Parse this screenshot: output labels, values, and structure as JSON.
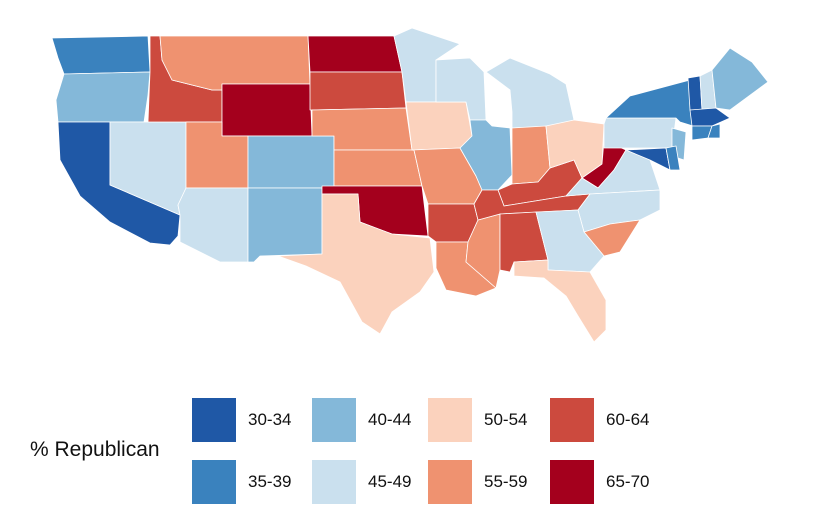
{
  "legend": {
    "title": "% Republican",
    "bins": [
      {
        "label": "30-34",
        "color": "#1f58a6"
      },
      {
        "label": "35-39",
        "color": "#3a82be"
      },
      {
        "label": "40-44",
        "color": "#84b8d9"
      },
      {
        "label": "45-49",
        "color": "#cae0ee"
      },
      {
        "label": "50-54",
        "color": "#fbd2bd"
      },
      {
        "label": "55-59",
        "color": "#ef9270"
      },
      {
        "label": "60-64",
        "color": "#cc4a3e"
      },
      {
        "label": "65-70",
        "color": "#a4001d"
      }
    ]
  },
  "states": [
    {
      "id": "WA",
      "bin": "35-39"
    },
    {
      "id": "OR",
      "bin": "40-44"
    },
    {
      "id": "CA",
      "bin": "30-34"
    },
    {
      "id": "NV",
      "bin": "45-49"
    },
    {
      "id": "ID",
      "bin": "60-64"
    },
    {
      "id": "MT",
      "bin": "55-59"
    },
    {
      "id": "WY",
      "bin": "65-70"
    },
    {
      "id": "UT",
      "bin": "55-59"
    },
    {
      "id": "AZ",
      "bin": "45-49"
    },
    {
      "id": "CO",
      "bin": "40-44"
    },
    {
      "id": "NM",
      "bin": "40-44"
    },
    {
      "id": "ND",
      "bin": "65-70"
    },
    {
      "id": "SD",
      "bin": "60-64"
    },
    {
      "id": "NE",
      "bin": "55-59"
    },
    {
      "id": "KS",
      "bin": "55-59"
    },
    {
      "id": "OK",
      "bin": "65-70"
    },
    {
      "id": "TX",
      "bin": "50-54"
    },
    {
      "id": "MN",
      "bin": "45-49"
    },
    {
      "id": "IA",
      "bin": "50-54"
    },
    {
      "id": "MO",
      "bin": "55-59"
    },
    {
      "id": "AR",
      "bin": "60-64"
    },
    {
      "id": "LA",
      "bin": "55-59"
    },
    {
      "id": "WI",
      "bin": "45-49"
    },
    {
      "id": "IL",
      "bin": "40-44"
    },
    {
      "id": "MS",
      "bin": "55-59"
    },
    {
      "id": "MI",
      "bin": "45-49"
    },
    {
      "id": "IN",
      "bin": "55-59"
    },
    {
      "id": "KY",
      "bin": "60-64"
    },
    {
      "id": "TN",
      "bin": "60-64"
    },
    {
      "id": "AL",
      "bin": "60-64"
    },
    {
      "id": "OH",
      "bin": "50-54"
    },
    {
      "id": "WV",
      "bin": "65-70"
    },
    {
      "id": "VA",
      "bin": "45-49"
    },
    {
      "id": "NC",
      "bin": "45-49"
    },
    {
      "id": "SC",
      "bin": "55-59"
    },
    {
      "id": "GA",
      "bin": "45-49"
    },
    {
      "id": "FL",
      "bin": "50-54"
    },
    {
      "id": "PA",
      "bin": "45-49"
    },
    {
      "id": "NY",
      "bin": "35-39"
    },
    {
      "id": "NJ",
      "bin": "40-44"
    },
    {
      "id": "MD",
      "bin": "30-34"
    },
    {
      "id": "DE",
      "bin": "35-39"
    },
    {
      "id": "VT",
      "bin": "30-34"
    },
    {
      "id": "NH",
      "bin": "45-49"
    },
    {
      "id": "ME",
      "bin": "40-44"
    },
    {
      "id": "MA",
      "bin": "30-34"
    },
    {
      "id": "CT",
      "bin": "35-39"
    },
    {
      "id": "RI",
      "bin": "35-39"
    }
  ]
}
